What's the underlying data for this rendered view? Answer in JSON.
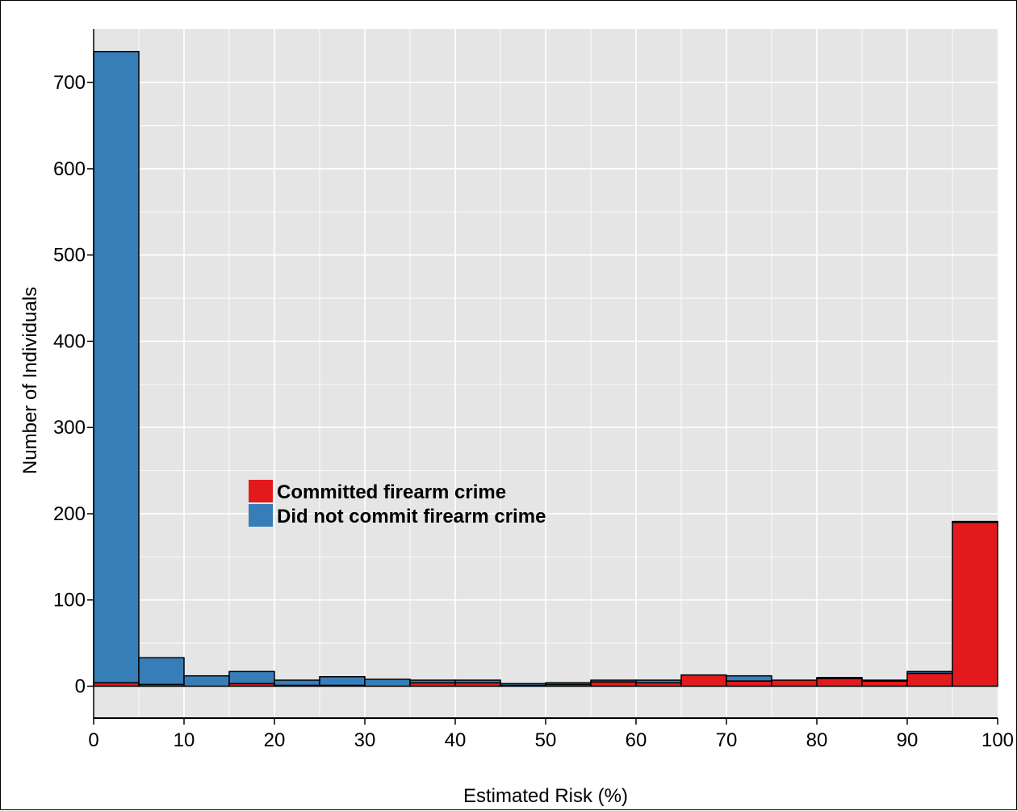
{
  "chart_data": {
    "type": "bar",
    "stacked": true,
    "bin_width": 5,
    "x": [
      0,
      5,
      10,
      15,
      20,
      25,
      30,
      35,
      40,
      45,
      50,
      55,
      60,
      65,
      70,
      75,
      80,
      85,
      90,
      95
    ],
    "series": [
      {
        "name": "Committed firearm crime",
        "color": "#e31a1c",
        "values": [
          4,
          2,
          0,
          3,
          1,
          1,
          0,
          4,
          4,
          1,
          2,
          5,
          4,
          13,
          6,
          7,
          9,
          6,
          15,
          190
        ]
      },
      {
        "name": "Did not commit firearm crime",
        "color": "#377eb8",
        "values": [
          732,
          31,
          12,
          14,
          6,
          10,
          8,
          3,
          3,
          2,
          2,
          2,
          3,
          0,
          6,
          0,
          1,
          1,
          2,
          1
        ]
      }
    ],
    "xlabel": "Estimated Risk (%)",
    "ylabel": "Number of Individuals",
    "xlim": [
      0,
      100
    ],
    "ylim": [
      -37,
      762
    ],
    "xticks": [
      0,
      10,
      20,
      30,
      40,
      50,
      60,
      70,
      80,
      90,
      100
    ],
    "yticks": [
      0,
      100,
      200,
      300,
      400,
      500,
      600,
      700
    ],
    "grid": true,
    "background": "#e5e5e5",
    "legend_position": "center-left"
  }
}
